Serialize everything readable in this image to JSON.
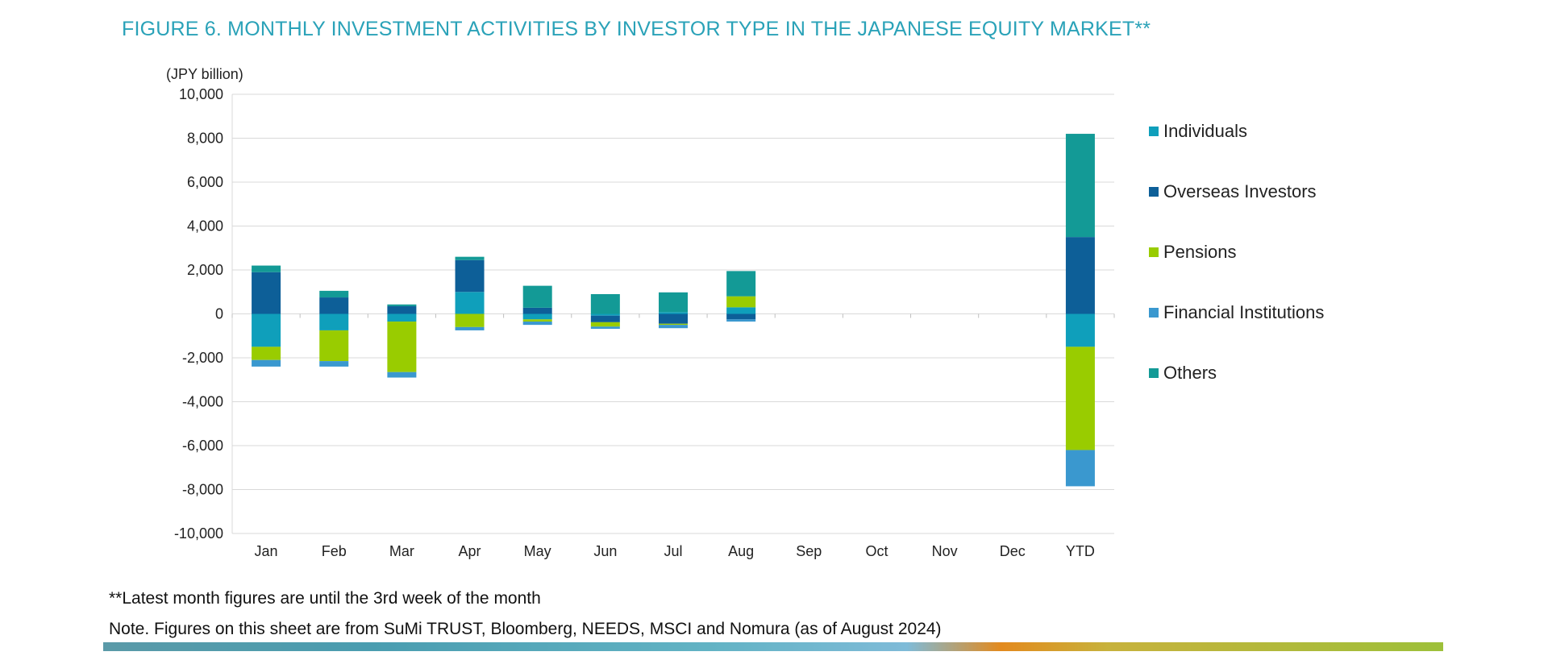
{
  "title": "FIGURE 6. MONTHLY INVESTMENT ACTIVITIES BY INVESTOR TYPE IN THE JAPANESE EQUITY MARKET**",
  "footnotes": {
    "latest": "**Latest month figures are until the 3rd week of the month",
    "source": "Note. Figures on this sheet are from SuMi TRUST, Bloomberg, NEEDS, MSCI and Nomura (as of August 2024)"
  },
  "colors": {
    "title": "#2aa2b8",
    "Individuals": "#0f9fbb",
    "Overseas Investors": "#0d5f98",
    "Pensions": "#99cc00",
    "Financial Institutions": "#3a98cf",
    "Others": "#139a96",
    "gridline": "#d9d9d9"
  },
  "chart_data": {
    "type": "bar",
    "stacked": true,
    "title": "FIGURE 6. MONTHLY INVESTMENT ACTIVITIES BY INVESTOR TYPE IN THE JAPANESE EQUITY MARKET**",
    "ylabel": "(JPY billion)",
    "xlabel": "",
    "ylim": [
      -10000,
      10000
    ],
    "yticks": [
      10000,
      8000,
      6000,
      4000,
      2000,
      0,
      -2000,
      -4000,
      -6000,
      -8000,
      -10000
    ],
    "ytick_labels": [
      "10,000",
      "8,000",
      "6,000",
      "4,000",
      "2,000",
      "0",
      "-2,000",
      "-4,000",
      "-6,000",
      "-8,000",
      "-10,000"
    ],
    "categories": [
      "Jan",
      "Feb",
      "Mar",
      "Apr",
      "May",
      "Jun",
      "Jul",
      "Aug",
      "Sep",
      "Oct",
      "Nov",
      "Dec",
      "YTD"
    ],
    "legend_position": "right",
    "series": [
      {
        "name": "Individuals",
        "values": [
          -1500,
          -750,
          -350,
          1000,
          -250,
          -80,
          80,
          300,
          null,
          null,
          null,
          null,
          -1500
        ]
      },
      {
        "name": "Overseas Investors",
        "values": [
          1900,
          750,
          350,
          1450,
          280,
          -300,
          -450,
          -250,
          null,
          null,
          null,
          null,
          3500
        ]
      },
      {
        "name": "Pensions",
        "values": [
          -600,
          -1400,
          -2300,
          -600,
          -100,
          -200,
          -50,
          500,
          null,
          null,
          null,
          null,
          -4700
        ]
      },
      {
        "name": "Financial Institutions",
        "values": [
          -300,
          -250,
          -250,
          -150,
          -150,
          -100,
          -150,
          -100,
          null,
          null,
          null,
          null,
          -1650
        ]
      },
      {
        "name": "Others",
        "values": [
          300,
          300,
          80,
          150,
          1000,
          900,
          900,
          1150,
          null,
          null,
          null,
          null,
          4700
        ]
      }
    ]
  }
}
